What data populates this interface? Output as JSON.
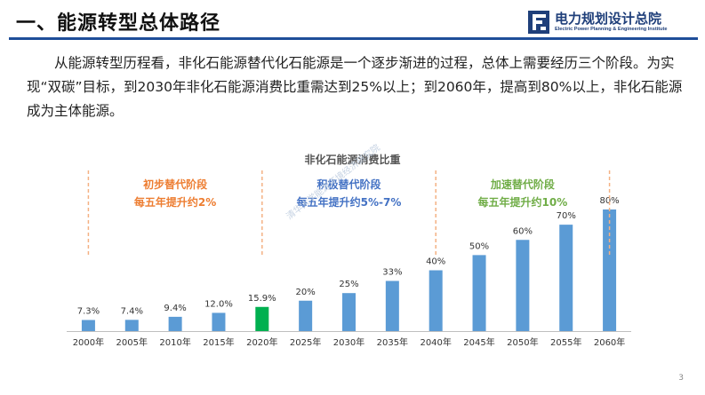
{
  "header": {
    "title": "一、能源转型总体路径",
    "logo_cn": "电力规划设计总院",
    "logo_en": "Electric Power Planning & Engineering Institute",
    "logo_color": "#1f3f7a"
  },
  "intro_text": "从能源转型历程看，非化石能源替代化石能源是一个逐步渐进的过程，总体上需要经历三个阶段。为实现“双碳”目标，到2030年非化石能源消费比重需达到25%以上；到2060年，提高到80%以上，非化石能源成为主体能源。",
  "watermark": "清华大学能源环境经济研究院",
  "page_number": "3",
  "chart_data": {
    "type": "bar",
    "title": "非化石能源消费比重",
    "categories": [
      "2000年",
      "2005年",
      "2010年",
      "2015年",
      "2020年",
      "2025年",
      "2030年",
      "2035年",
      "2040年",
      "2045年",
      "2050年",
      "2055年",
      "2060年"
    ],
    "values": [
      7.3,
      7.4,
      9.4,
      12.0,
      15.9,
      20,
      25,
      33,
      40,
      50,
      60,
      70,
      80
    ],
    "labels": [
      "7.3%",
      "7.4%",
      "9.4%",
      "12.0%",
      "15.9%",
      "20%",
      "25%",
      "33%",
      "40%",
      "50%",
      "60%",
      "70%",
      "80%"
    ],
    "ylim": [
      0,
      80
    ],
    "xlabel": "",
    "ylabel": "",
    "grid": false,
    "bar_color": "#5b9bd5",
    "highlight_index": 4,
    "highlight_color": "#00b050",
    "stages": [
      {
        "title": "初步替代阶段",
        "subtitle": "每五年提升约2%",
        "color": "#ed7d31"
      },
      {
        "title": "积极替代阶段",
        "subtitle": "每五年提升约5%-7%",
        "color": "#4472c4"
      },
      {
        "title": "加速替代阶段",
        "subtitle": "每五年提升约10%",
        "color": "#70ad47"
      }
    ],
    "divider_color": "#f4b183"
  }
}
